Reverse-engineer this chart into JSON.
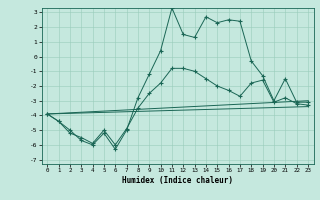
{
  "xlabel": "Humidex (Indice chaleur)",
  "xlim": [
    0,
    23
  ],
  "ylim": [
    -7,
    3
  ],
  "yticks": [
    -7,
    -6,
    -5,
    -4,
    -3,
    -2,
    -1,
    0,
    1,
    2,
    3
  ],
  "xticks": [
    0,
    1,
    2,
    3,
    4,
    5,
    6,
    7,
    8,
    9,
    10,
    11,
    12,
    13,
    14,
    15,
    16,
    17,
    18,
    19,
    20,
    21,
    22,
    23
  ],
  "bg_color": "#c5e8de",
  "line_color": "#1a6655",
  "grid_color": "#99ccbb",
  "line1_x": [
    0,
    1,
    2,
    3,
    4,
    5,
    6,
    7,
    8,
    9,
    10,
    11,
    12,
    13,
    14,
    15,
    16,
    17,
    18,
    19,
    20,
    21,
    22,
    23
  ],
  "line1_y": [
    -3.9,
    -4.4,
    -5.0,
    -5.7,
    -6.0,
    -5.2,
    -6.3,
    -5.0,
    -2.8,
    -1.2,
    0.4,
    3.3,
    1.5,
    1.3,
    2.7,
    2.3,
    2.5,
    2.4,
    -0.3,
    -1.3,
    -3.0,
    -1.5,
    -3.1,
    -3.1
  ],
  "line2_x": [
    0,
    1,
    2,
    3,
    4,
    5,
    6,
    7,
    8,
    9,
    10,
    11,
    12,
    13,
    14,
    15,
    16,
    17,
    18,
    19,
    20,
    21,
    22,
    23
  ],
  "line2_y": [
    -3.9,
    -4.4,
    -5.2,
    -5.5,
    -5.9,
    -5.0,
    -6.0,
    -4.9,
    -3.5,
    -2.5,
    -1.8,
    -0.8,
    -0.8,
    -1.0,
    -1.5,
    -2.0,
    -2.3,
    -2.7,
    -1.8,
    -1.6,
    -3.1,
    -2.8,
    -3.2,
    -3.3
  ],
  "line3_x": [
    0,
    23
  ],
  "line3_y": [
    -3.9,
    -3.0
  ],
  "line4_x": [
    0,
    23
  ],
  "line4_y": [
    -3.9,
    -3.4
  ]
}
